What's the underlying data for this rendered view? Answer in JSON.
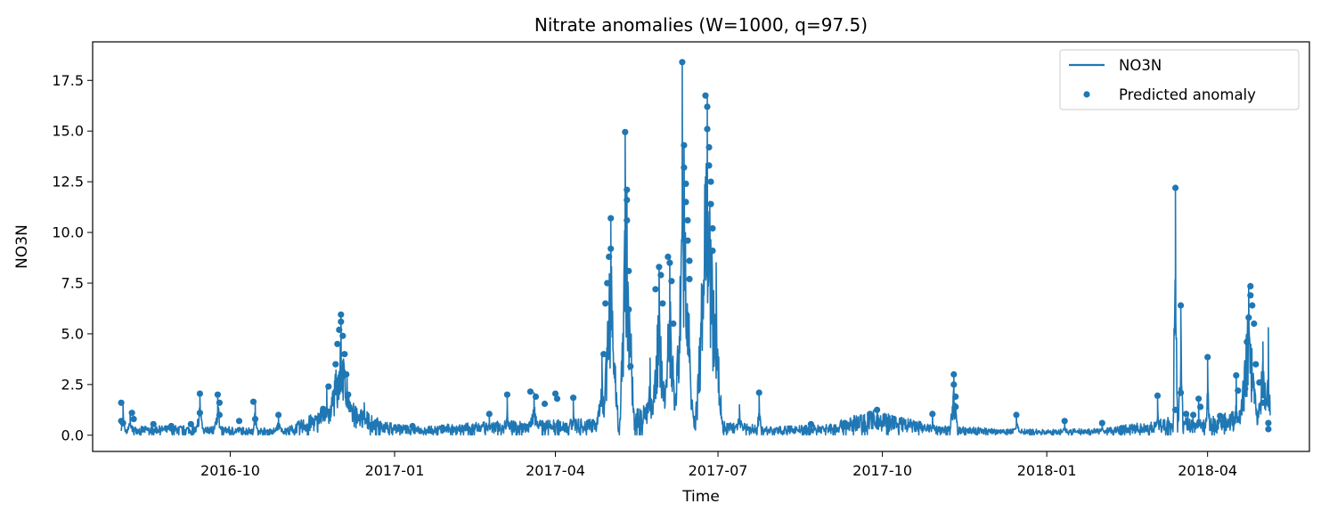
{
  "chart_data": {
    "type": "line",
    "title": "Nitrate anomalies (W=1000, q=97.5)",
    "xlabel": "Time",
    "ylabel": "NO3N",
    "xlim": [
      "2016-07-16",
      "2018-05-28"
    ],
    "ylim": [
      -0.8,
      19.4
    ],
    "x_ticks": [
      "2016-10",
      "2017-01",
      "2017-04",
      "2017-07",
      "2017-10",
      "2018-01",
      "2018-04"
    ],
    "y_ticks": [
      "0.0",
      "2.5",
      "5.0",
      "7.5",
      "10.0",
      "12.5",
      "15.0",
      "17.5"
    ],
    "grid": false,
    "legend_position": "top-right",
    "colors": {
      "series": "#1f77b4",
      "axes": "#000000",
      "legend_border": "#cccccc"
    },
    "series": [
      {
        "name": "NO3N",
        "kind": "line",
        "baseline": [
          [
            "2016-08-01",
            0.3
          ],
          [
            "2016-09-01",
            0.35
          ],
          [
            "2016-10-01",
            0.3
          ],
          [
            "2016-11-01",
            0.25
          ],
          [
            "2016-11-20",
            0.9
          ],
          [
            "2016-12-10",
            1.2
          ],
          [
            "2016-12-25",
            0.5
          ],
          [
            "2017-01-15",
            0.3
          ],
          [
            "2017-02-01",
            0.4
          ],
          [
            "2017-03-01",
            0.5
          ],
          [
            "2017-04-01",
            0.55
          ],
          [
            "2017-04-20",
            0.6
          ],
          [
            "2017-05-15",
            1.0
          ],
          [
            "2017-06-01",
            1.3
          ],
          [
            "2017-06-20",
            1.2
          ],
          [
            "2017-07-05",
            0.5
          ],
          [
            "2017-08-01",
            0.3
          ],
          [
            "2017-09-01",
            0.4
          ],
          [
            "2017-09-25",
            0.9
          ],
          [
            "2017-10-15",
            0.6
          ],
          [
            "2017-11-01",
            0.35
          ],
          [
            "2017-12-01",
            0.25
          ],
          [
            "2018-01-01",
            0.2
          ],
          [
            "2018-02-01",
            0.25
          ],
          [
            "2018-03-01",
            0.5
          ],
          [
            "2018-03-15",
            0.7
          ],
          [
            "2018-04-01",
            0.6
          ],
          [
            "2018-04-15",
            0.9
          ],
          [
            "2018-05-06",
            0.7
          ]
        ],
        "bursts": [
          [
            "2016-08-02",
            1.5,
            1
          ],
          [
            "2016-08-06",
            1.1,
            2
          ],
          [
            "2016-09-14",
            2.0,
            2
          ],
          [
            "2016-09-24",
            2.0,
            2
          ],
          [
            "2016-10-15",
            1.6,
            1
          ],
          [
            "2016-10-28",
            1.0,
            3
          ],
          [
            "2016-11-24",
            2.4,
            6
          ],
          [
            "2016-12-02",
            5.9,
            8
          ],
          [
            "2016-12-15",
            1.6,
            3
          ],
          [
            "2017-02-23",
            1.0,
            2
          ],
          [
            "2017-03-05",
            2.0,
            1
          ],
          [
            "2017-03-20",
            2.1,
            3
          ],
          [
            "2017-04-11",
            1.8,
            1
          ],
          [
            "2017-04-27",
            4.0,
            3
          ],
          [
            "2017-05-02",
            10.7,
            4
          ],
          [
            "2017-05-10",
            14.9,
            1
          ],
          [
            "2017-05-11",
            12.1,
            4
          ],
          [
            "2017-05-24",
            3.8,
            4
          ],
          [
            "2017-05-29",
            8.3,
            4
          ],
          [
            "2017-06-04",
            8.8,
            4
          ],
          [
            "2017-06-11",
            18.4,
            1
          ],
          [
            "2017-06-12",
            14.3,
            5
          ],
          [
            "2017-06-25",
            16.8,
            6
          ],
          [
            "2017-06-30",
            8.5,
            3
          ],
          [
            "2017-07-13",
            1.5,
            3
          ],
          [
            "2017-07-24",
            2.1,
            1
          ],
          [
            "2017-09-28",
            1.2,
            6
          ],
          [
            "2017-10-29",
            1.0,
            2
          ],
          [
            "2017-11-10",
            3.0,
            2
          ],
          [
            "2017-12-15",
            1.0,
            2
          ],
          [
            "2018-01-11",
            0.7,
            2
          ],
          [
            "2018-02-01",
            0.6,
            2
          ],
          [
            "2018-03-04",
            1.9,
            1
          ],
          [
            "2018-03-14",
            12.2,
            1
          ],
          [
            "2018-03-17",
            6.4,
            1
          ],
          [
            "2018-03-21",
            1.0,
            5
          ],
          [
            "2018-03-27",
            1.8,
            2
          ],
          [
            "2018-04-01",
            3.8,
            1
          ],
          [
            "2018-04-08",
            1.0,
            3
          ],
          [
            "2018-04-17",
            2.9,
            1
          ],
          [
            "2018-04-24",
            7.3,
            5
          ],
          [
            "2018-05-02",
            4.6,
            4
          ],
          [
            "2018-05-05",
            5.3,
            1
          ]
        ]
      },
      {
        "name": "Predicted anomaly",
        "kind": "scatter",
        "points": [
          [
            "2016-08-01",
            1.6
          ],
          [
            "2016-08-01",
            0.7
          ],
          [
            "2016-08-02",
            0.6
          ],
          [
            "2016-08-07",
            1.1
          ],
          [
            "2016-08-08",
            0.8
          ],
          [
            "2016-08-19",
            0.55
          ],
          [
            "2016-08-29",
            0.45
          ],
          [
            "2016-09-09",
            0.55
          ],
          [
            "2016-09-14",
            2.05
          ],
          [
            "2016-09-14",
            1.1
          ],
          [
            "2016-09-24",
            2.0
          ],
          [
            "2016-09-25",
            1.6
          ],
          [
            "2016-09-25",
            1.0
          ],
          [
            "2016-10-06",
            0.7
          ],
          [
            "2016-10-14",
            1.65
          ],
          [
            "2016-10-15",
            0.8
          ],
          [
            "2016-10-28",
            1.0
          ],
          [
            "2016-11-22",
            1.3
          ],
          [
            "2016-11-25",
            2.4
          ],
          [
            "2016-11-29",
            3.5
          ],
          [
            "2016-11-30",
            4.5
          ],
          [
            "2016-12-01",
            5.2
          ],
          [
            "2016-12-02",
            5.95
          ],
          [
            "2016-12-02",
            5.6
          ],
          [
            "2016-12-03",
            4.9
          ],
          [
            "2016-12-04",
            4.0
          ],
          [
            "2016-12-05",
            3.0
          ],
          [
            "2016-12-06",
            2.0
          ],
          [
            "2017-01-11",
            0.45
          ],
          [
            "2017-02-23",
            1.05
          ],
          [
            "2017-03-05",
            2.0
          ],
          [
            "2017-03-18",
            2.15
          ],
          [
            "2017-03-21",
            1.9
          ],
          [
            "2017-03-26",
            1.55
          ],
          [
            "2017-04-01",
            2.05
          ],
          [
            "2017-04-02",
            1.8
          ],
          [
            "2017-04-11",
            1.85
          ],
          [
            "2017-04-28",
            4.0
          ],
          [
            "2017-04-29",
            6.5
          ],
          [
            "2017-04-30",
            7.5
          ],
          [
            "2017-05-01",
            8.8
          ],
          [
            "2017-05-02",
            10.7
          ],
          [
            "2017-05-02",
            9.2
          ],
          [
            "2017-05-10",
            14.95
          ],
          [
            "2017-05-11",
            12.1
          ],
          [
            "2017-05-11",
            11.6
          ],
          [
            "2017-05-11",
            10.6
          ],
          [
            "2017-05-12",
            8.1
          ],
          [
            "2017-05-12",
            6.2
          ],
          [
            "2017-05-13",
            3.4
          ],
          [
            "2017-05-27",
            7.2
          ],
          [
            "2017-05-29",
            8.3
          ],
          [
            "2017-05-30",
            7.9
          ],
          [
            "2017-05-31",
            6.5
          ],
          [
            "2017-06-03",
            8.8
          ],
          [
            "2017-06-04",
            8.5
          ],
          [
            "2017-06-05",
            7.6
          ],
          [
            "2017-06-06",
            5.5
          ],
          [
            "2017-06-11",
            18.4
          ],
          [
            "2017-06-12",
            14.3
          ],
          [
            "2017-06-12",
            13.2
          ],
          [
            "2017-06-13",
            12.4
          ],
          [
            "2017-06-13",
            11.5
          ],
          [
            "2017-06-14",
            10.6
          ],
          [
            "2017-06-14",
            9.6
          ],
          [
            "2017-06-15",
            8.6
          ],
          [
            "2017-06-15",
            7.7
          ],
          [
            "2017-06-24",
            16.75
          ],
          [
            "2017-06-25",
            16.2
          ],
          [
            "2017-06-25",
            15.1
          ],
          [
            "2017-06-26",
            14.2
          ],
          [
            "2017-06-26",
            13.3
          ],
          [
            "2017-06-27",
            12.5
          ],
          [
            "2017-06-27",
            11.4
          ],
          [
            "2017-06-28",
            10.2
          ],
          [
            "2017-06-28",
            9.1
          ],
          [
            "2017-07-24",
            2.1
          ],
          [
            "2017-08-22",
            0.55
          ],
          [
            "2017-09-10",
            0.6
          ],
          [
            "2017-09-24",
            1.05
          ],
          [
            "2017-09-28",
            1.25
          ],
          [
            "2017-10-29",
            1.05
          ],
          [
            "2017-11-10",
            3.0
          ],
          [
            "2017-11-10",
            2.5
          ],
          [
            "2017-11-11",
            1.9
          ],
          [
            "2017-11-11",
            1.4
          ],
          [
            "2017-12-15",
            1.0
          ],
          [
            "2018-01-11",
            0.7
          ],
          [
            "2018-02-01",
            0.6
          ],
          [
            "2018-02-12",
            0.35
          ],
          [
            "2018-03-04",
            1.95
          ],
          [
            "2018-03-14",
            12.2
          ],
          [
            "2018-03-14",
            1.25
          ],
          [
            "2018-03-17",
            6.4
          ],
          [
            "2018-03-17",
            2.1
          ],
          [
            "2018-03-20",
            1.05
          ],
          [
            "2018-03-24",
            1.0
          ],
          [
            "2018-03-27",
            1.8
          ],
          [
            "2018-03-28",
            1.4
          ],
          [
            "2018-04-01",
            3.85
          ],
          [
            "2018-04-08",
            0.95
          ],
          [
            "2018-04-17",
            2.95
          ],
          [
            "2018-04-18",
            2.2
          ],
          [
            "2018-04-22",
            2.3
          ],
          [
            "2018-04-23",
            4.6
          ],
          [
            "2018-04-24",
            5.8
          ],
          [
            "2018-04-25",
            7.35
          ],
          [
            "2018-04-25",
            6.9
          ],
          [
            "2018-04-26",
            6.4
          ],
          [
            "2018-04-27",
            5.5
          ],
          [
            "2018-04-28",
            3.5
          ],
          [
            "2018-04-30",
            2.6
          ],
          [
            "2018-05-02",
            1.6
          ],
          [
            "2018-05-05",
            0.6
          ],
          [
            "2018-05-05",
            0.3
          ]
        ]
      }
    ]
  }
}
